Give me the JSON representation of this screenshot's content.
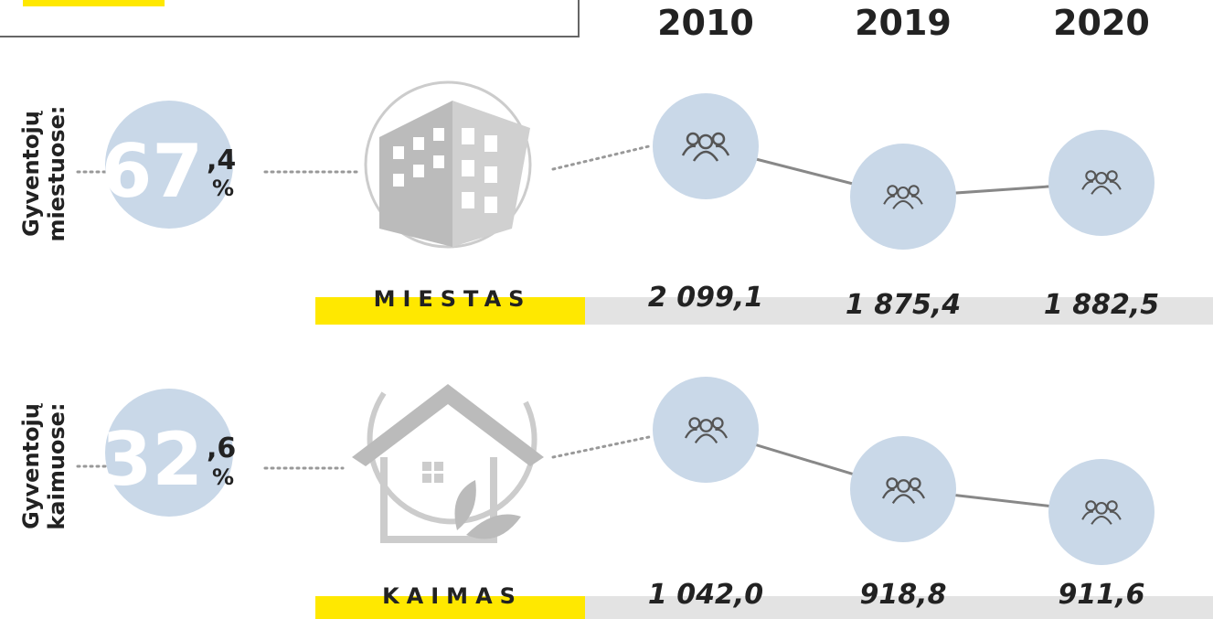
{
  "years": [
    "2010",
    "2019",
    "2020"
  ],
  "rows": [
    {
      "label": [
        "Gyventojų",
        "miestuose:"
      ],
      "percent_int": "67",
      "percent_dec": ",4",
      "percent_sign": "%",
      "name": "MIESTAS",
      "values": [
        "2 099,1",
        "1 875,4",
        "1 882,5"
      ]
    },
    {
      "label": [
        "Gyventojų",
        "kaimuose:"
      ],
      "percent_int": "32",
      "percent_dec": ",6",
      "percent_sign": "%",
      "name": "KAIMAS",
      "values": [
        "1 042,0",
        "918,8",
        "911,6"
      ]
    }
  ]
}
